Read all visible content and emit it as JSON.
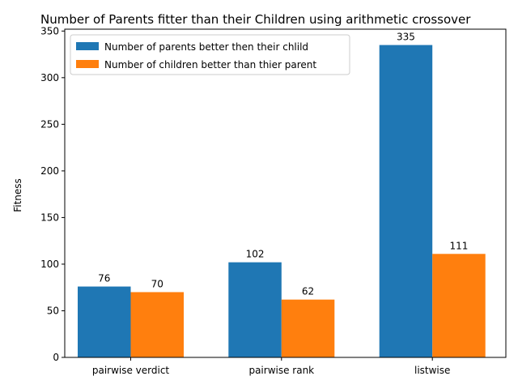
{
  "chart_data": {
    "type": "bar",
    "title": "Number of Parents fitter than their Children  using arithmetic crossover",
    "xlabel": "",
    "ylabel": "Fitness",
    "categories": [
      "pairwise verdict",
      "pairwise rank",
      "listwise"
    ],
    "series": [
      {
        "name": "Number of parents better then their chlild",
        "values": [
          76,
          102,
          335
        ],
        "color": "#1f77b4"
      },
      {
        "name": "Number of children better than thier parent",
        "values": [
          70,
          62,
          111
        ],
        "color": "#ff7f0e"
      }
    ],
    "ylim": [
      0,
      352
    ],
    "yticks": [
      0,
      50,
      100,
      150,
      200,
      250,
      300,
      350
    ],
    "grid": false,
    "legend_position": "top-left",
    "data_labels": true
  }
}
